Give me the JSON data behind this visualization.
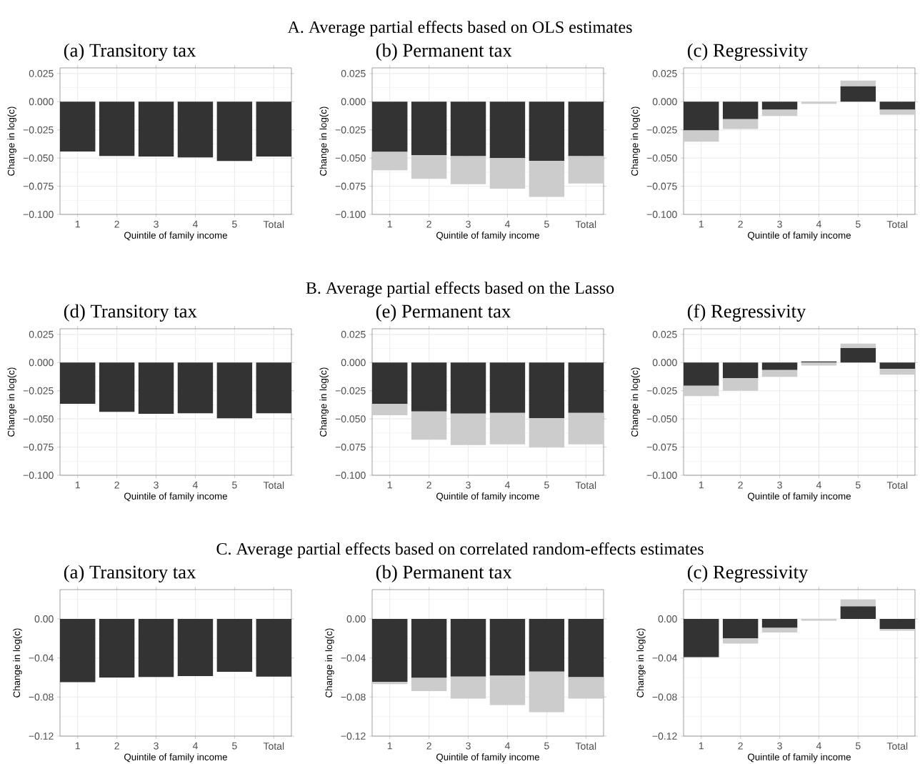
{
  "chart_data": [
    {
      "type": "bar",
      "title": "(a) Transitory tax",
      "xlabel": "Quintile of family income",
      "ylabel": "Change in log(c)",
      "categories": [
        "1",
        "2",
        "3",
        "4",
        "5",
        "Total"
      ],
      "ylim": [
        -0.1,
        0.03
      ],
      "yticks": [
        {
          "value": -0.1,
          "label": "−0.100"
        },
        {
          "value": -0.075,
          "label": "−0.075"
        },
        {
          "value": -0.05,
          "label": "−0.050"
        },
        {
          "value": -0.025,
          "label": "−0.025"
        },
        {
          "value": 0,
          "label": "0.000"
        },
        {
          "value": 0.025,
          "label": "0.025"
        }
      ],
      "grid": true,
      "series": [
        {
          "color": "#333333",
          "values": [
            -0.0442,
            -0.0482,
            -0.0487,
            -0.0495,
            -0.0526,
            -0.0487
          ]
        }
      ]
    },
    {
      "type": "bar",
      "title": "(b) Permanent tax",
      "xlabel": "Quintile of family income",
      "ylabel": "Change in log(c)",
      "categories": [
        "1",
        "2",
        "3",
        "4",
        "5",
        "Total"
      ],
      "ylim": [
        -0.1,
        0.03
      ],
      "yticks": [
        {
          "value": -0.1,
          "label": "−0.100"
        },
        {
          "value": -0.075,
          "label": "−0.075"
        },
        {
          "value": -0.05,
          "label": "−0.050"
        },
        {
          "value": -0.025,
          "label": "−0.025"
        },
        {
          "value": 0,
          "label": "0.000"
        },
        {
          "value": 0.025,
          "label": "0.025"
        }
      ],
      "grid": true,
      "annotations": [
        "A. Average partial effects based on OLS estimates"
      ],
      "series": [
        {
          "color": "#333333",
          "values": [
            -0.0445,
            -0.0476,
            -0.0484,
            -0.05,
            -0.0524,
            -0.0484
          ]
        },
        {
          "color": "#cccccc",
          "values": [
            -0.0163,
            -0.0208,
            -0.0248,
            -0.0271,
            -0.0321,
            -0.0242
          ]
        }
      ],
      "stacked": true
    },
    {
      "type": "bar",
      "title": "(c) Regressivity",
      "xlabel": "Quintile of family income",
      "ylabel": "Change in log(c)",
      "categories": [
        "1",
        "2",
        "3",
        "4",
        "5",
        "Total"
      ],
      "ylim": [
        -0.1,
        0.03
      ],
      "yticks": [
        {
          "value": -0.1,
          "label": "−0.100"
        },
        {
          "value": -0.075,
          "label": "−0.075"
        },
        {
          "value": -0.05,
          "label": "−0.050"
        },
        {
          "value": -0.025,
          "label": "−0.025"
        },
        {
          "value": 0,
          "label": "0.000"
        },
        {
          "value": 0.025,
          "label": "0.025"
        }
      ],
      "grid": true,
      "series": [
        {
          "color": "#333333",
          "values": [
            -0.0255,
            -0.0155,
            -0.0071,
            null,
            0.0139,
            -0.0071
          ]
        },
        {
          "color": "#cccccc",
          "values": [
            -0.01,
            -0.0087,
            -0.0055,
            -0.0018,
            0.0048,
            -0.0045
          ]
        }
      ],
      "stacked": true
    },
    {
      "type": "bar",
      "title": "(d) Transitory tax",
      "xlabel": "Quintile of family income",
      "ylabel": "Change in log(c)",
      "categories": [
        "1",
        "2",
        "3",
        "4",
        "5",
        "Total"
      ],
      "ylim": [
        -0.1,
        0.03
      ],
      "yticks": [
        {
          "value": -0.1,
          "label": "−0.100"
        },
        {
          "value": -0.075,
          "label": "−0.075"
        },
        {
          "value": -0.05,
          "label": "−0.050"
        },
        {
          "value": -0.025,
          "label": "−0.025"
        },
        {
          "value": 0,
          "label": "0.000"
        },
        {
          "value": 0.025,
          "label": "0.025"
        }
      ],
      "grid": true,
      "series": [
        {
          "color": "#333333",
          "values": [
            -0.0366,
            -0.0437,
            -0.0455,
            -0.045,
            -0.0495,
            -0.045
          ]
        }
      ]
    },
    {
      "type": "bar",
      "title": "(e) Permanent tax",
      "xlabel": "Quintile of family income",
      "ylabel": "Change in log(c)",
      "categories": [
        "1",
        "2",
        "3",
        "4",
        "5",
        "Total"
      ],
      "ylim": [
        -0.1,
        0.03
      ],
      "yticks": [
        {
          "value": -0.1,
          "label": "−0.100"
        },
        {
          "value": -0.075,
          "label": "−0.075"
        },
        {
          "value": -0.05,
          "label": "−0.050"
        },
        {
          "value": -0.025,
          "label": "−0.025"
        },
        {
          "value": 0,
          "label": "0.000"
        },
        {
          "value": 0.025,
          "label": "0.025"
        }
      ],
      "grid": true,
      "annotations": [
        "B. Average partial effects based on the Lasso"
      ],
      "series": [
        {
          "color": "#333333",
          "values": [
            -0.0368,
            -0.0434,
            -0.0453,
            -0.0447,
            -0.0492,
            -0.0447
          ]
        },
        {
          "color": "#cccccc",
          "values": [
            -0.01,
            -0.025,
            -0.0279,
            -0.0279,
            -0.0263,
            -0.0279
          ]
        }
      ],
      "stacked": true
    },
    {
      "type": "bar",
      "title": "(f) Regressivity",
      "xlabel": "Quintile of family income",
      "ylabel": "Change in log(c)",
      "categories": [
        "1",
        "2",
        "3",
        "4",
        "5",
        "Total"
      ],
      "ylim": [
        -0.1,
        0.03
      ],
      "yticks": [
        {
          "value": -0.1,
          "label": "−0.100"
        },
        {
          "value": -0.075,
          "label": "−0.075"
        },
        {
          "value": -0.05,
          "label": "−0.050"
        },
        {
          "value": -0.025,
          "label": "−0.025"
        },
        {
          "value": 0,
          "label": "0.000"
        },
        {
          "value": 0.025,
          "label": "0.025"
        }
      ],
      "grid": true,
      "series": [
        {
          "color": "#333333",
          "values": [
            -0.0205,
            -0.0137,
            -0.0066,
            0.001,
            0.0129,
            -0.0055
          ]
        },
        {
          "color": "#cccccc",
          "values": [
            -0.0092,
            -0.0113,
            -0.006,
            -0.0026,
            0.0039,
            -0.0053
          ]
        }
      ],
      "stacked": true
    },
    {
      "type": "bar",
      "title": "(a) Transitory tax",
      "xlabel": "Quintile of family income",
      "ylabel": "Change in log(c)",
      "categories": [
        "1",
        "2",
        "3",
        "4",
        "5",
        "Total"
      ],
      "ylim": [
        -0.12,
        0.03
      ],
      "yticks": [
        {
          "value": -0.12,
          "label": "−0.12"
        },
        {
          "value": -0.08,
          "label": "−0.08"
        },
        {
          "value": -0.04,
          "label": "−0.04"
        },
        {
          "value": 0,
          "label": "0.00"
        }
      ],
      "grid": true,
      "series": [
        {
          "color": "#333333",
          "values": [
            -0.0648,
            -0.06,
            -0.0594,
            -0.0585,
            -0.0542,
            -0.0591
          ]
        }
      ]
    },
    {
      "type": "bar",
      "title": "(b) Permanent tax",
      "xlabel": "Quintile of family income",
      "ylabel": "Change in log(c)",
      "categories": [
        "1",
        "2",
        "3",
        "4",
        "5",
        "Total"
      ],
      "ylim": [
        -0.12,
        0.03
      ],
      "yticks": [
        {
          "value": -0.12,
          "label": "−0.12"
        },
        {
          "value": -0.08,
          "label": "−0.08"
        },
        {
          "value": -0.04,
          "label": "−0.04"
        },
        {
          "value": 0,
          "label": "0.00"
        }
      ],
      "grid": true,
      "annotations": [
        "C. Average partial effects based on correlated random-effects estimates"
      ],
      "series": [
        {
          "color": "#333333",
          "values": [
            -0.0645,
            -0.0603,
            -0.0591,
            -0.0582,
            -0.0539,
            -0.0597
          ]
        },
        {
          "color": "#cccccc",
          "values": [
            -0.0022,
            -0.0136,
            -0.0224,
            -0.03,
            -0.0416,
            -0.0218
          ]
        }
      ],
      "stacked": true
    },
    {
      "type": "bar",
      "title": "(c) Regressivity",
      "xlabel": "Quintile of family income",
      "ylabel": "Change in log(c)",
      "categories": [
        "1",
        "2",
        "3",
        "4",
        "5",
        "Total"
      ],
      "ylim": [
        -0.12,
        0.03
      ],
      "yticks": [
        {
          "value": -0.12,
          "label": "−0.12"
        },
        {
          "value": -0.08,
          "label": "−0.08"
        },
        {
          "value": -0.04,
          "label": "−0.04"
        },
        {
          "value": 0,
          "label": "0.00"
        }
      ],
      "grid": true,
      "series": [
        {
          "color": "#333333",
          "values": [
            -0.0391,
            -0.02,
            -0.0091,
            null,
            0.013,
            -0.0103
          ]
        },
        {
          "color": "#cccccc",
          "values": [
            null,
            -0.0052,
            -0.0048,
            -0.0018,
            0.007,
            -0.0018
          ]
        }
      ],
      "stacked": true
    }
  ]
}
